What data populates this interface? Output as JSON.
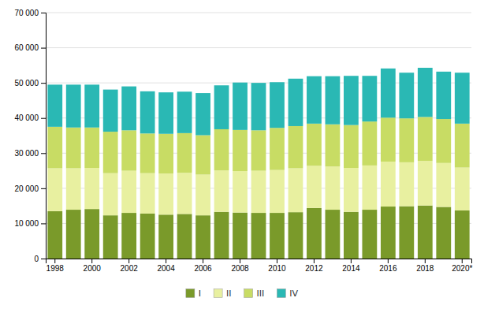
{
  "chart_data": {
    "type": "bar",
    "stacked": true,
    "grid": true,
    "legend": "bottom",
    "categories": [
      "1998",
      null,
      "2000",
      null,
      "2002",
      null,
      "2004",
      null,
      "2006",
      null,
      "2008",
      null,
      "2010",
      null,
      "2012",
      null,
      "2014",
      null,
      "2016",
      null,
      "2018",
      null,
      "2020*"
    ],
    "series": [
      {
        "name": "I",
        "color": "#7a9a2a",
        "values": [
          13500,
          13900,
          14100,
          12300,
          13000,
          12800,
          12500,
          12700,
          12300,
          13300,
          13100,
          13000,
          13000,
          13200,
          14400,
          13900,
          13300,
          13900,
          14800,
          14900,
          15100,
          14700,
          13700
        ]
      },
      {
        "name": "II",
        "color": "#e8f0a0",
        "values": [
          12200,
          11800,
          11700,
          12000,
          12000,
          11500,
          11700,
          11700,
          11600,
          11800,
          11800,
          12000,
          12200,
          12500,
          12000,
          12300,
          12500,
          12600,
          12800,
          12500,
          12700,
          12500,
          12200
        ]
      },
      {
        "name": "III",
        "color": "#c8dc64",
        "values": [
          11800,
          11600,
          11500,
          11800,
          11500,
          11300,
          11300,
          11300,
          11200,
          11700,
          11700,
          11500,
          12000,
          12000,
          12000,
          12000,
          12200,
          12500,
          12500,
          12500,
          12500,
          12500,
          12500
        ]
      },
      {
        "name": "IV",
        "color": "#2ab8b4",
        "values": [
          12000,
          12200,
          12200,
          12000,
          12500,
          12000,
          11800,
          11800,
          12000,
          12500,
          13500,
          13500,
          13000,
          13500,
          13500,
          13700,
          14000,
          13000,
          14000,
          13000,
          14000,
          13500,
          14500
        ]
      }
    ],
    "ylim": [
      0,
      70000
    ],
    "yticks": [
      0,
      {
        "value": 10000,
        "label": "10 000"
      },
      {
        "value": 20000,
        "label": "20 000"
      },
      {
        "value": 30000,
        "label": "30 000"
      },
      {
        "value": 40000,
        "label": "40 000"
      },
      {
        "value": 50000,
        "label": "50 000"
      },
      {
        "value": 60000,
        "label": "60 000"
      },
      {
        "value": 70000,
        "label": "70 000"
      }
    ]
  }
}
